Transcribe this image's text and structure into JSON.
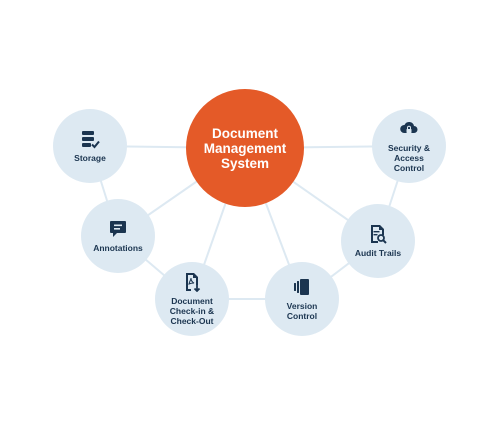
{
  "center": {
    "label": "Document\nManagement\nSystem",
    "color": "#e45a28"
  },
  "nodes": [
    {
      "id": "storage",
      "label": "Storage",
      "icon": "storage-check-icon"
    },
    {
      "id": "security",
      "label": "Security &\nAccess\nControl",
      "icon": "cloud-lock-icon"
    },
    {
      "id": "annotations",
      "label": "Annotations",
      "icon": "comment-icon"
    },
    {
      "id": "audit",
      "label": "Audit Trails",
      "icon": "document-search-icon"
    },
    {
      "id": "checkin",
      "label": "Document\nCheck-in &\nCheck-Out",
      "icon": "pdf-document-icon"
    },
    {
      "id": "version",
      "label": "Version\nControl",
      "icon": "stacked-pages-icon"
    }
  ],
  "colors": {
    "node_fill": "#dde9f2",
    "node_text": "#1b3550",
    "icon": "#1b3550",
    "line": "#dde9f2"
  }
}
